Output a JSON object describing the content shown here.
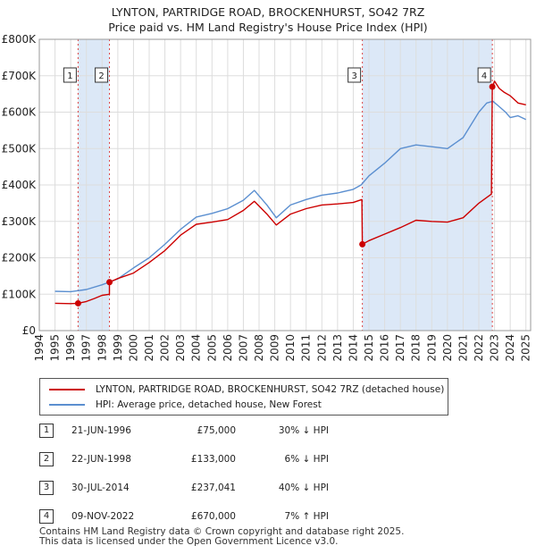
{
  "title_line1": "LYNTON, PARTRIDGE ROAD, BROCKENHURST, SO42 7RZ",
  "title_line2": "Price paid vs. HM Land Registry's House Price Index (HPI)",
  "colors": {
    "property": "#cc0000",
    "hpi": "#5b8fd0",
    "shade": "#dce8f7",
    "grid": "#dddddd"
  },
  "chart_data": {
    "type": "line",
    "x_range": [
      1994.0,
      2025.3
    ],
    "y_range": [
      0,
      800000
    ],
    "y_ticks": [
      0,
      100000,
      200000,
      300000,
      400000,
      500000,
      600000,
      700000,
      800000
    ],
    "y_tick_labels": [
      "£0",
      "£100K",
      "£200K",
      "£300K",
      "£400K",
      "£500K",
      "£600K",
      "£700K",
      "£800K"
    ],
    "x_ticks": [
      1994,
      1995,
      1996,
      1997,
      1998,
      1999,
      2000,
      2001,
      2002,
      2003,
      2004,
      2005,
      2006,
      2007,
      2008,
      2009,
      2010,
      2011,
      2012,
      2013,
      2014,
      2015,
      2016,
      2017,
      2018,
      2019,
      2020,
      2021,
      2022,
      2023,
      2024,
      2025
    ],
    "x_tick_labels": [
      "1994",
      "1995",
      "1996",
      "1997",
      "1998",
      "1999",
      "2000",
      "2001",
      "2002",
      "2003",
      "2004",
      "2005",
      "2006",
      "2007",
      "2008",
      "2009",
      "2010",
      "2011",
      "2012",
      "2013",
      "2014",
      "2015",
      "2016",
      "2017",
      "2018",
      "2019",
      "2020",
      "2021",
      "2022",
      "2023",
      "2024",
      "2025"
    ],
    "shaded_spans": [
      [
        1996.47,
        1998.47
      ],
      [
        2014.58,
        2022.86
      ]
    ],
    "markers": [
      {
        "label": "1",
        "x": 1996.47,
        "y": 75000
      },
      {
        "label": "2",
        "x": 1998.47,
        "y": 133000
      },
      {
        "label": "3",
        "x": 2014.58,
        "y": 237041
      },
      {
        "label": "4",
        "x": 2022.86,
        "y": 670000
      }
    ],
    "series": [
      {
        "name": "LYNTON, PARTRIDGE ROAD, BROCKENHURST, SO42 7RZ (detached house)",
        "x": [
          1995.0,
          1996.0,
          1996.47,
          1996.47,
          1997.0,
          1997.5,
          1998.0,
          1998.47,
          1998.47,
          1999.0,
          2000.0,
          2001.0,
          2002.0,
          2003.0,
          2004.0,
          2005.0,
          2006.0,
          2007.0,
          2007.7,
          2008.5,
          2009.1,
          2010.0,
          2011.0,
          2012.0,
          2013.0,
          2014.0,
          2014.55,
          2014.58,
          2015.0,
          2016.0,
          2017.0,
          2018.0,
          2019.0,
          2020.0,
          2021.0,
          2022.0,
          2022.8,
          2022.86,
          2023.0,
          2023.3,
          2023.6,
          2024.0,
          2024.5,
          2025.0
        ],
        "values": [
          75000,
          74000,
          75000,
          75000,
          80000,
          88000,
          97000,
          100000,
          133000,
          143000,
          158000,
          187000,
          220000,
          262000,
          292000,
          298000,
          305000,
          330000,
          355000,
          320000,
          290000,
          320000,
          335000,
          345000,
          348000,
          352000,
          360000,
          237041,
          247000,
          265000,
          283000,
          303000,
          300000,
          298000,
          310000,
          350000,
          375000,
          670000,
          685000,
          665000,
          655000,
          645000,
          625000,
          620000
        ]
      },
      {
        "name": "HPI: Average price, detached house, New Forest",
        "x": [
          1995.0,
          1996.0,
          1997.0,
          1998.0,
          1999.0,
          2000.0,
          2001.0,
          2002.0,
          2003.0,
          2004.0,
          2005.0,
          2006.0,
          2007.0,
          2007.7,
          2008.5,
          2009.1,
          2010.0,
          2011.0,
          2012.0,
          2013.0,
          2014.0,
          2014.5,
          2015.0,
          2016.0,
          2017.0,
          2018.0,
          2019.0,
          2020.0,
          2021.0,
          2022.0,
          2022.5,
          2022.9,
          2023.3,
          2023.7,
          2024.0,
          2024.5,
          2025.0
        ],
        "values": [
          108000,
          107000,
          113000,
          126000,
          142000,
          172000,
          200000,
          237000,
          278000,
          312000,
          322000,
          335000,
          358000,
          385000,
          345000,
          310000,
          345000,
          360000,
          372000,
          378000,
          388000,
          400000,
          425000,
          460000,
          500000,
          510000,
          505000,
          500000,
          530000,
          600000,
          625000,
          630000,
          615000,
          600000,
          585000,
          590000,
          580000
        ]
      }
    ]
  },
  "legend": [
    {
      "label": "LYNTON, PARTRIDGE ROAD, BROCKENHURST, SO42 7RZ (detached house)",
      "color": "#cc0000"
    },
    {
      "label": "HPI: Average price, detached house, New Forest",
      "color": "#5b8fd0"
    }
  ],
  "sales": [
    {
      "num": "1",
      "date": "21-JUN-1996",
      "price": "£75,000",
      "hpi": "30% ↓ HPI"
    },
    {
      "num": "2",
      "date": "22-JUN-1998",
      "price": "£133,000",
      "hpi": "6% ↓ HPI"
    },
    {
      "num": "3",
      "date": "30-JUL-2014",
      "price": "£237,041",
      "hpi": "40% ↓ HPI"
    },
    {
      "num": "4",
      "date": "09-NOV-2022",
      "price": "£670,000",
      "hpi": "7% ↑ HPI"
    }
  ],
  "footer_line1": "Contains HM Land Registry data © Crown copyright and database right 2025.",
  "footer_line2": "This data is licensed under the Open Government Licence v3.0."
}
